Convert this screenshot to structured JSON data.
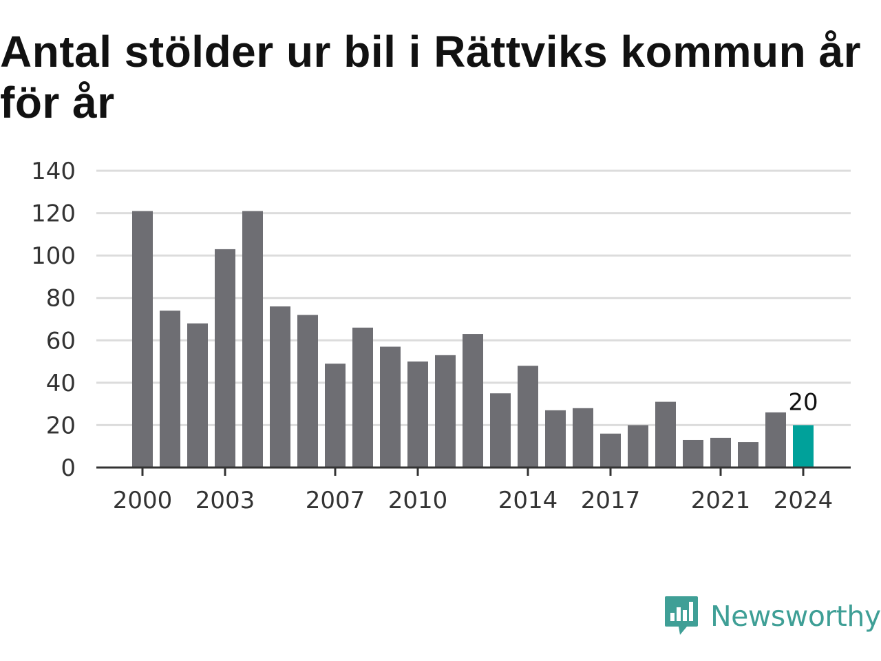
{
  "header": {
    "title": "Antal stölder ur bil i Rättviks kommun år för år"
  },
  "brand": {
    "name": "Newsworthy",
    "icon": "newsworthy-logo-icon",
    "color": "#3f9f96"
  },
  "chart_data": {
    "type": "bar",
    "title": "Antal stölder ur bil i Rättviks kommun år för år",
    "xlabel": "",
    "ylabel": "",
    "categories": [
      "2000",
      "2001",
      "2002",
      "2003",
      "2004",
      "2005",
      "2006",
      "2007",
      "2008",
      "2009",
      "2010",
      "2011",
      "2012",
      "2013",
      "2014",
      "2015",
      "2016",
      "2017",
      "2018",
      "2019",
      "2020",
      "2021",
      "2022",
      "2023",
      "2024"
    ],
    "values": [
      121,
      74,
      68,
      103,
      121,
      76,
      72,
      49,
      66,
      57,
      50,
      53,
      63,
      35,
      48,
      27,
      28,
      16,
      20,
      31,
      13,
      14,
      12,
      26,
      20
    ],
    "x_tick_labels": [
      "2000",
      "2003",
      "2007",
      "2010",
      "2014",
      "2017",
      "2021",
      "2024"
    ],
    "y_ticks": [
      0,
      20,
      40,
      60,
      80,
      100,
      120,
      140
    ],
    "ylim": [
      0,
      140
    ],
    "grid": true,
    "legend": "none",
    "bar_color": "#6e6e73",
    "highlight_color": "#00a19a",
    "highlight_category": "2024",
    "annotations": [
      {
        "category": "2024",
        "text": "20"
      }
    ]
  }
}
